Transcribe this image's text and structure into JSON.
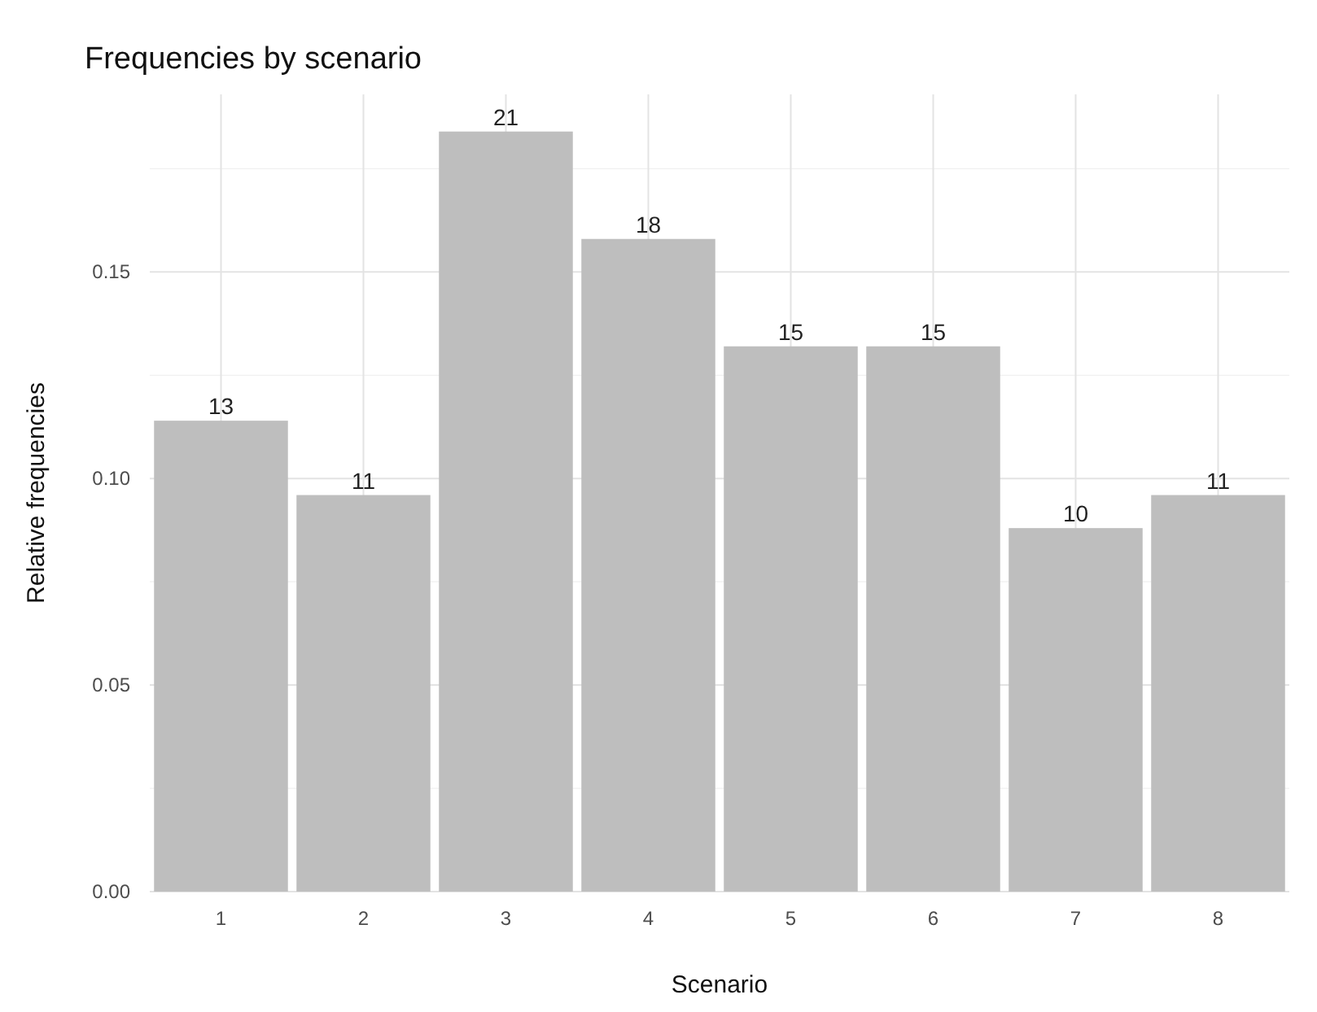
{
  "chart_data": {
    "type": "bar",
    "title": "Frequencies by scenario",
    "xlabel": "Scenario",
    "ylabel": "Relative frequencies",
    "categories": [
      "1",
      "2",
      "3",
      "4",
      "5",
      "6",
      "7",
      "8"
    ],
    "values": [
      0.114,
      0.096,
      0.184,
      0.158,
      0.132,
      0.132,
      0.088,
      0.096
    ],
    "annotations": [
      {
        "text": "13",
        "x": "1",
        "y": 0.114
      },
      {
        "text": "11",
        "x": "2",
        "y": 0.096
      },
      {
        "text": "21",
        "x": "3",
        "y": 0.184
      },
      {
        "text": "18",
        "x": "4",
        "y": 0.158
      },
      {
        "text": "15",
        "x": "5",
        "y": 0.132
      },
      {
        "text": "15",
        "x": "6",
        "y": 0.132
      },
      {
        "text": "10",
        "x": "7",
        "y": 0.088
      },
      {
        "text": "11",
        "x": "8",
        "y": 0.096
      }
    ],
    "color": "#bebebe",
    "ylim": [
      0,
      0.193
    ],
    "yticks": [
      {
        "value": 0,
        "label": "0.00"
      },
      {
        "value": 0.025,
        "label": null
      },
      {
        "value": 0.05,
        "label": "0.05"
      },
      {
        "value": 0.075,
        "label": null
      },
      {
        "value": 0.1,
        "label": "0.10"
      },
      {
        "value": 0.125,
        "label": null
      },
      {
        "value": 0.15,
        "label": "0.15"
      },
      {
        "value": 0.175,
        "label": null
      }
    ],
    "grid": true
  }
}
